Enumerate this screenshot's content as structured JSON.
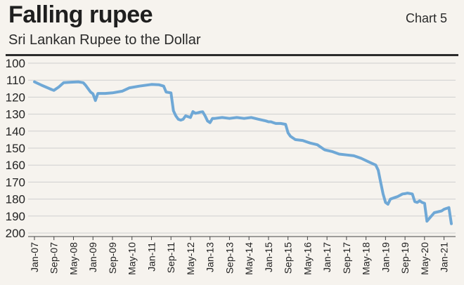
{
  "header": {
    "title": "Falling rupee",
    "chart_no": "Chart 5",
    "subtitle": "Sri Lankan Rupee to the Dollar"
  },
  "colors": {
    "line": "#6fa8d6",
    "grid": "#cfcfcf",
    "background": "#f6f3ee"
  },
  "chart_data": {
    "type": "line",
    "title": "Falling rupee",
    "subtitle": "Sri Lankan Rupee to the Dollar",
    "xlabel": "",
    "ylabel": "",
    "ylim": [
      100,
      200
    ],
    "y_inverted": true,
    "yticks": [
      100,
      110,
      120,
      130,
      140,
      150,
      160,
      170,
      180,
      190,
      200
    ],
    "grid": "horizontal",
    "legend": "none",
    "xticks": [
      "Jan-07",
      "Sep-07",
      "May-08",
      "Jan-09",
      "Sep-09",
      "May-10",
      "Jan-11",
      "Sep-11",
      "May-12",
      "Jan-13",
      "Sep-13",
      "May-14",
      "Jan-15",
      "Sep-15",
      "May-16",
      "Jan-17",
      "Sep-17",
      "May-18",
      "Jan-19",
      "Sep-19",
      "May-20",
      "Jan-21"
    ],
    "series": [
      {
        "x": [
          "2007-01",
          "2007-04",
          "2007-08",
          "2007-09",
          "2007-11",
          "2008-01",
          "2008-04",
          "2008-07",
          "2008-09",
          "2008-10",
          "2008-11",
          "2008-12",
          "2009-01",
          "2009-02",
          "2009-03",
          "2009-06",
          "2009-09",
          "2010-01",
          "2010-04",
          "2010-08",
          "2011-01",
          "2011-04",
          "2011-06",
          "2011-07",
          "2011-09",
          "2011-10",
          "2011-11",
          "2011-12",
          "2012-01",
          "2012-02",
          "2012-03",
          "2012-04",
          "2012-05",
          "2012-06",
          "2012-07",
          "2012-08",
          "2012-09",
          "2012-10",
          "2012-11",
          "2012-12",
          "2013-01",
          "2013-02",
          "2013-03",
          "2013-06",
          "2013-09",
          "2013-12",
          "2014-03",
          "2014-06",
          "2014-09",
          "2014-12",
          "2015-01",
          "2015-02",
          "2015-03",
          "2015-04",
          "2015-06",
          "2015-08",
          "2015-09",
          "2015-10",
          "2015-12",
          "2016-03",
          "2016-06",
          "2016-09",
          "2016-12",
          "2017-03",
          "2017-06",
          "2017-09",
          "2017-12",
          "2018-03",
          "2018-06",
          "2018-09",
          "2018-10",
          "2018-11",
          "2018-12",
          "2019-01",
          "2019-02",
          "2019-03",
          "2019-05",
          "2019-06",
          "2019-08",
          "2019-09",
          "2019-10",
          "2019-12",
          "2020-01",
          "2020-02",
          "2020-03",
          "2020-04",
          "2020-05",
          "2020-06",
          "2020-09",
          "2020-12",
          "2021-01",
          "2021-02",
          "2021-03",
          "2021-04"
        ],
        "values": [
          111,
          113,
          115.5,
          116,
          114,
          111.5,
          111.2,
          111,
          111.5,
          113,
          115,
          117,
          118,
          122,
          117.8,
          117.8,
          117.5,
          116.5,
          114.5,
          113.5,
          112.5,
          112.7,
          113.5,
          117,
          117.5,
          128,
          131,
          133,
          133.5,
          133,
          131,
          131.5,
          132,
          128.5,
          129.5,
          129.2,
          128.8,
          128.6,
          131,
          134,
          135,
          132.5,
          132.5,
          132,
          132.5,
          132,
          132.5,
          132,
          133,
          134,
          134.5,
          134.5,
          135,
          135.5,
          135.5,
          136,
          141,
          143,
          145,
          145.5,
          147,
          148,
          151,
          152,
          153.5,
          154,
          154.5,
          156,
          158,
          160,
          163,
          170,
          177,
          182,
          183,
          180,
          179,
          178.5,
          177,
          176.8,
          176.5,
          177,
          181.5,
          182,
          181,
          182,
          182.5,
          193,
          188,
          187,
          186,
          185.5,
          185,
          194.5
        ]
      }
    ]
  }
}
